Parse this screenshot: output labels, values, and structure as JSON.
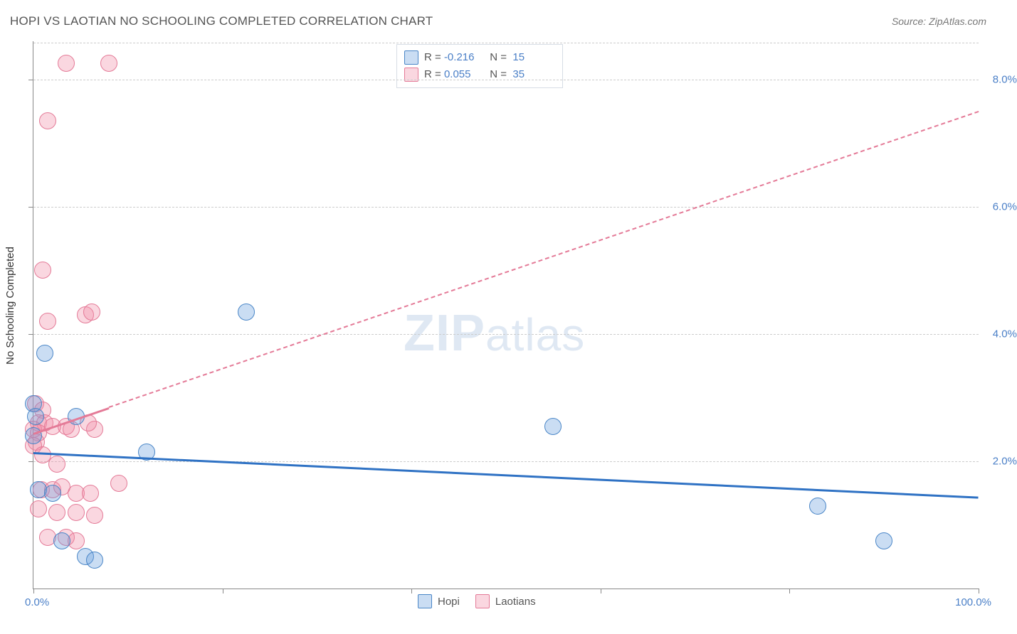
{
  "title": "HOPI VS LAOTIAN NO SCHOOLING COMPLETED CORRELATION CHART",
  "source": "Source: ZipAtlas.com",
  "y_axis_title": "No Schooling Completed",
  "watermark_bold": "ZIP",
  "watermark_rest": "atlas",
  "colors": {
    "blue_fill": "rgba(104,159,220,0.35)",
    "blue_stroke": "#4a86c7",
    "pink_fill": "rgba(240,140,165,0.35)",
    "pink_stroke": "#e47a97",
    "blue_line": "#2f72c4",
    "pink_line": "#e47a97",
    "axis_text": "#4a7fc7"
  },
  "chart": {
    "type": "scatter",
    "xmin": 0,
    "xmax": 100,
    "ymin": 0,
    "ymax": 8.6,
    "ytick_values": [
      2.0,
      4.0,
      6.0,
      8.0
    ],
    "ytick_labels": [
      "2.0%",
      "4.0%",
      "6.0%",
      "8.0%"
    ],
    "xtick_values": [
      0,
      20,
      40,
      60,
      80,
      100
    ],
    "x_label_min": "0.0%",
    "x_label_max": "100.0%",
    "point_radius": 11
  },
  "r_box": {
    "rows": [
      {
        "swatch_fill": "rgba(104,159,220,0.35)",
        "swatch_stroke": "#4a86c7",
        "r_label": "R =",
        "r_val": "-0.216",
        "n_label": "N =",
        "n_val": "15"
      },
      {
        "swatch_fill": "rgba(240,140,165,0.35)",
        "swatch_stroke": "#e47a97",
        "r_label": "R =",
        "r_val": "0.055",
        "n_label": "N =",
        "n_val": "35"
      }
    ]
  },
  "legend": [
    {
      "swatch_fill": "rgba(104,159,220,0.35)",
      "swatch_stroke": "#4a86c7",
      "label": "Hopi"
    },
    {
      "swatch_fill": "rgba(240,140,165,0.35)",
      "swatch_stroke": "#e47a97",
      "label": "Laotians"
    }
  ],
  "series": {
    "hopi": {
      "color_fill": "rgba(104,159,220,0.35)",
      "color_stroke": "#4a86c7",
      "points": [
        [
          0.0,
          2.9
        ],
        [
          0.2,
          2.7
        ],
        [
          4.5,
          2.7
        ],
        [
          1.2,
          3.7
        ],
        [
          22.5,
          4.35
        ],
        [
          12.0,
          2.15
        ],
        [
          0.5,
          1.55
        ],
        [
          2.0,
          1.5
        ],
        [
          5.5,
          0.5
        ],
        [
          6.5,
          0.45
        ],
        [
          3.0,
          0.75
        ],
        [
          55.0,
          2.55
        ],
        [
          83.0,
          1.3
        ],
        [
          90.0,
          0.75
        ],
        [
          0.0,
          2.4
        ]
      ],
      "trend": {
        "x1": 0,
        "y1": 2.15,
        "x2": 100,
        "y2": 1.45,
        "style": "solid"
      }
    },
    "laotians": {
      "color_fill": "rgba(240,140,165,0.35)",
      "color_stroke": "#e47a97",
      "points": [
        [
          3.5,
          8.25
        ],
        [
          8.0,
          8.25
        ],
        [
          1.5,
          7.35
        ],
        [
          1.0,
          5.0
        ],
        [
          5.5,
          4.3
        ],
        [
          6.2,
          4.35
        ],
        [
          1.5,
          4.2
        ],
        [
          0.2,
          2.9
        ],
        [
          1.0,
          2.8
        ],
        [
          0.5,
          2.6
        ],
        [
          1.2,
          2.6
        ],
        [
          2.0,
          2.55
        ],
        [
          0.0,
          2.5
        ],
        [
          0.5,
          2.45
        ],
        [
          3.5,
          2.55
        ],
        [
          4.0,
          2.5
        ],
        [
          6.5,
          2.5
        ],
        [
          5.8,
          2.6
        ],
        [
          0.3,
          2.3
        ],
        [
          0.0,
          2.25
        ],
        [
          1.0,
          2.1
        ],
        [
          2.5,
          1.95
        ],
        [
          0.8,
          1.55
        ],
        [
          2.0,
          1.55
        ],
        [
          3.0,
          1.6
        ],
        [
          9.0,
          1.65
        ],
        [
          4.5,
          1.5
        ],
        [
          6.0,
          1.5
        ],
        [
          0.5,
          1.25
        ],
        [
          2.5,
          1.2
        ],
        [
          4.5,
          1.2
        ],
        [
          6.5,
          1.15
        ],
        [
          1.5,
          0.8
        ],
        [
          3.5,
          0.8
        ],
        [
          4.5,
          0.75
        ]
      ],
      "trend": {
        "x1": 0,
        "y1": 2.45,
        "x2": 100,
        "y2": 7.5,
        "style": "solid-then-dash",
        "solid_until_x": 8
      }
    }
  }
}
